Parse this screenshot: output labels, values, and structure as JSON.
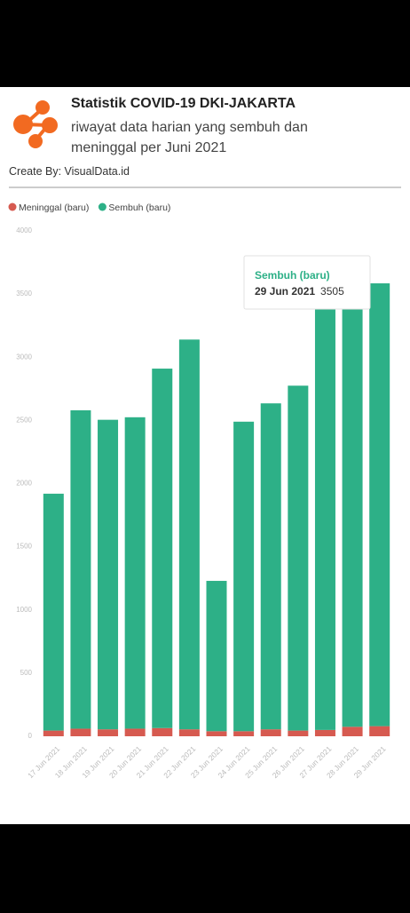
{
  "header": {
    "title": "Statistik COVID-19 DKI-JAKARTA",
    "subtitle": "riwayat data harian yang sembuh dan meninggal per Juni 2021",
    "credit": "Create By: VisualData.id"
  },
  "chart_data": {
    "type": "stacked_bar",
    "categories": [
      "17 Jun 2021",
      "18 Jun 2021",
      "19 Jun 2021",
      "20 Jun 2021",
      "21 Jun 2021",
      "22 Jun 2021",
      "23 Jun 2021",
      "24 Jun 2021",
      "25 Jun 2021",
      "26 Jun 2021",
      "27 Jun 2021",
      "28 Jun 2021",
      "29 Jun 2021"
    ],
    "series": [
      {
        "name": "Meninggal (baru)",
        "color": "#d65a50",
        "values": [
          45,
          60,
          55,
          60,
          65,
          55,
          40,
          40,
          55,
          45,
          50,
          75,
          80
        ]
      },
      {
        "name": "Sembuh (baru)",
        "color": "#2db087",
        "values": [
          1875,
          2520,
          2450,
          2465,
          2845,
          3085,
          1190,
          2450,
          2580,
          2730,
          3350,
          3330,
          3505
        ]
      }
    ],
    "ylim": [
      0,
      4000
    ],
    "yticks": [
      0,
      500,
      1000,
      1500,
      2000,
      2500,
      3000,
      3500,
      4000
    ],
    "legend": "top-left"
  }
}
